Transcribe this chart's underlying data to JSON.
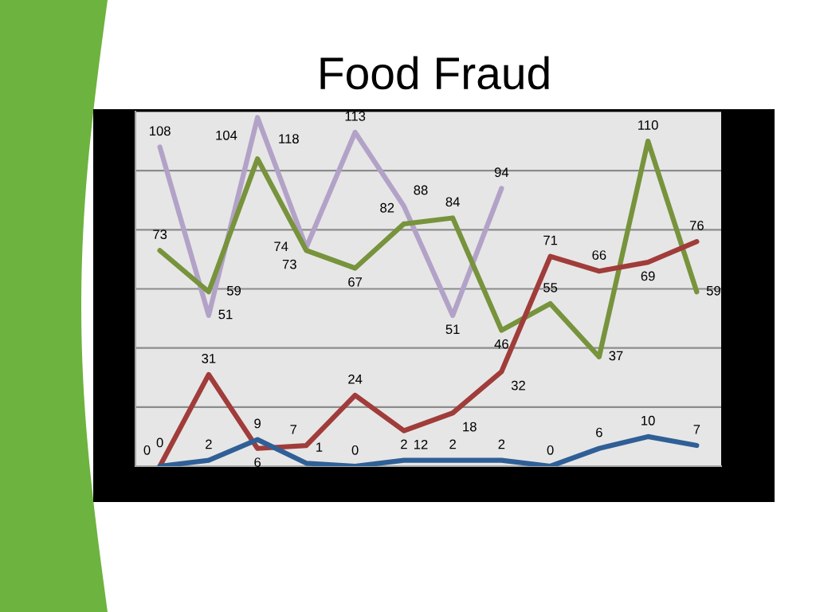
{
  "chart_data": {
    "type": "line",
    "title": "Food Fraud",
    "categories": [
      null,
      null,
      null,
      null,
      null,
      null,
      null,
      null,
      null,
      null,
      null,
      null
    ],
    "series": [
      {
        "color": "#2f5f96",
        "values": [
          0,
          2,
          9,
          1,
          0,
          2,
          2,
          2,
          0,
          6,
          10,
          7
        ]
      },
      {
        "color": "#a03c3a",
        "values": [
          0,
          31,
          6,
          7,
          24,
          12,
          18,
          32,
          71,
          66,
          69,
          76
        ]
      },
      {
        "color": "#77933c",
        "values": [
          73,
          59,
          104,
          73,
          67,
          82,
          84,
          46,
          55,
          37,
          110,
          59
        ]
      },
      {
        "color": "#b3a2c7",
        "values": [
          108,
          51,
          118,
          74,
          113,
          88,
          51,
          94,
          null,
          null,
          null,
          null
        ]
      }
    ],
    "ylim": [
      0,
      120
    ],
    "yticks": [
      {
        "value": 0,
        "label": null
      },
      {
        "value": 20,
        "label": null
      },
      {
        "value": 40,
        "label": null
      },
      {
        "value": 60,
        "label": null
      },
      {
        "value": 80,
        "label": null
      },
      {
        "value": 100,
        "label": null
      },
      {
        "value": 120,
        "label": null
      }
    ],
    "grid": "y",
    "data_labels": true
  }
}
